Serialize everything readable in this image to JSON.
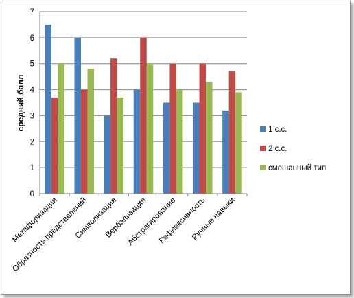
{
  "chart_data": {
    "type": "bar",
    "title": "",
    "xlabel": "",
    "ylabel": "средний балл",
    "ylim": [
      0,
      7
    ],
    "yticks": [
      0,
      1,
      2,
      3,
      4,
      5,
      6,
      7
    ],
    "grid": true,
    "legend_position": "right",
    "categories": [
      "Метафоризация",
      "Образность представлений",
      "Символизация",
      "Вербализация",
      "Абстрагирование",
      "Рефлексивность",
      "Ручные навыки"
    ],
    "series": [
      {
        "name": "1 с.с.",
        "color": "#4a7ebb",
        "values": [
          6.5,
          6.0,
          3.0,
          4.0,
          3.5,
          3.5,
          3.2
        ]
      },
      {
        "name": "2 с.с.",
        "color": "#be4b48",
        "values": [
          3.7,
          4.0,
          5.2,
          6.0,
          5.0,
          5.0,
          4.7
        ]
      },
      {
        "name": "смешанный тип",
        "color": "#98b954",
        "values": [
          5.0,
          4.8,
          3.7,
          5.0,
          4.0,
          4.3,
          3.9
        ]
      }
    ]
  }
}
